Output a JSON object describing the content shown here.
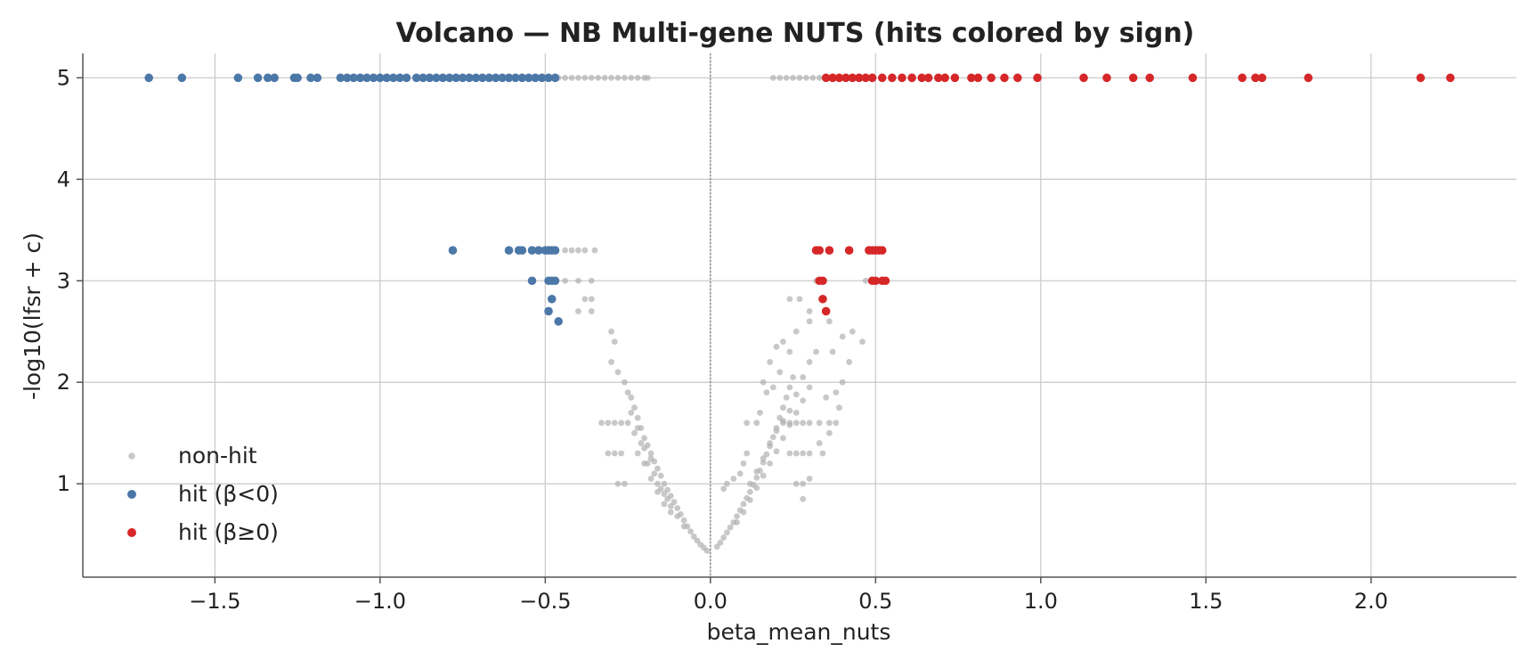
{
  "chart_data": {
    "type": "scatter",
    "title": "Volcano — NB Multi-gene NUTS (hits colored by sign)",
    "xlabel": "beta_mean_nuts",
    "ylabel": "-log10(lfsr + c)",
    "xlim": [
      -1.9,
      2.44
    ],
    "ylim": [
      0.08,
      5.24
    ],
    "xticks": [
      -1.5,
      -1.0,
      -0.5,
      0.0,
      0.5,
      1.0,
      1.5,
      2.0
    ],
    "xtick_labels": [
      "−1.5",
      "−1.0",
      "−0.5",
      "0.0",
      "0.5",
      "1.0",
      "1.5",
      "2.0"
    ],
    "yticks": [
      1,
      2,
      3,
      4,
      5
    ],
    "ytick_labels": [
      "1",
      "2",
      "3",
      "4",
      "5"
    ],
    "grid": true,
    "legend_position": "lower-left",
    "reference_line_x": 0.0,
    "colors": {
      "non_hit": "#b0b0b0",
      "neg_hit": "#4c78a8",
      "pos_hit": "#d62728"
    },
    "series": [
      {
        "name": "non-hit",
        "color": "#b0b0b0",
        "points": [
          [
            -0.46,
            5.0
          ],
          [
            -0.44,
            5.0
          ],
          [
            -0.42,
            5.0
          ],
          [
            -0.4,
            5.0
          ],
          [
            -0.38,
            5.0
          ],
          [
            -0.36,
            5.0
          ],
          [
            -0.34,
            5.0
          ],
          [
            -0.32,
            5.0
          ],
          [
            -0.3,
            5.0
          ],
          [
            -0.28,
            5.0
          ],
          [
            -0.26,
            5.0
          ],
          [
            -0.24,
            5.0
          ],
          [
            -0.22,
            5.0
          ],
          [
            -0.2,
            5.0
          ],
          [
            -0.19,
            5.0
          ],
          [
            0.19,
            5.0
          ],
          [
            0.21,
            5.0
          ],
          [
            0.23,
            5.0
          ],
          [
            0.25,
            5.0
          ],
          [
            0.27,
            5.0
          ],
          [
            0.29,
            5.0
          ],
          [
            0.31,
            5.0
          ],
          [
            0.33,
            5.0
          ],
          [
            -0.44,
            3.3
          ],
          [
            -0.42,
            3.3
          ],
          [
            -0.4,
            3.3
          ],
          [
            -0.38,
            3.3
          ],
          [
            -0.35,
            3.3
          ],
          [
            -0.36,
            3.0
          ],
          [
            -0.4,
            3.0
          ],
          [
            -0.38,
            2.82
          ],
          [
            -0.36,
            2.82
          ],
          [
            -0.4,
            2.7
          ],
          [
            -0.36,
            2.7
          ],
          [
            -0.44,
            3.0
          ],
          [
            0.24,
            2.82
          ],
          [
            0.27,
            2.82
          ],
          [
            0.3,
            2.7
          ],
          [
            0.32,
            3.0
          ],
          [
            0.3,
            2.6
          ],
          [
            0.26,
            2.5
          ],
          [
            0.36,
            2.6
          ],
          [
            0.4,
            2.45
          ],
          [
            0.43,
            2.5
          ],
          [
            0.46,
            2.4
          ],
          [
            0.48,
            3.3
          ],
          [
            0.47,
            3.0
          ],
          [
            0.42,
            2.2
          ],
          [
            -0.3,
            2.5
          ],
          [
            -0.29,
            2.4
          ],
          [
            -0.3,
            2.2
          ],
          [
            -0.28,
            2.1
          ],
          [
            -0.33,
            1.6
          ],
          [
            -0.31,
            1.6
          ],
          [
            -0.29,
            1.6
          ],
          [
            -0.27,
            1.6
          ],
          [
            -0.31,
            1.3
          ],
          [
            -0.29,
            1.3
          ],
          [
            -0.27,
            1.3
          ],
          [
            -0.28,
            1.0
          ],
          [
            -0.26,
            1.0
          ],
          [
            -0.25,
            1.9
          ],
          [
            -0.24,
            1.85
          ],
          [
            -0.23,
            1.75
          ],
          [
            -0.22,
            1.65
          ],
          [
            -0.21,
            1.55
          ],
          [
            -0.2,
            1.45
          ],
          [
            -0.19,
            1.38
          ],
          [
            -0.18,
            1.3
          ],
          [
            -0.17,
            1.22
          ],
          [
            -0.16,
            1.15
          ],
          [
            -0.15,
            1.08
          ],
          [
            -0.14,
            1.0
          ],
          [
            -0.13,
            0.94
          ],
          [
            -0.12,
            0.88
          ],
          [
            -0.11,
            0.82
          ],
          [
            -0.1,
            0.76
          ],
          [
            -0.09,
            0.7
          ],
          [
            -0.08,
            0.64
          ],
          [
            -0.07,
            0.58
          ],
          [
            -0.06,
            0.53
          ],
          [
            -0.05,
            0.48
          ],
          [
            -0.04,
            0.44
          ],
          [
            -0.03,
            0.4
          ],
          [
            -0.02,
            0.37
          ],
          [
            -0.01,
            0.34
          ],
          [
            -0.25,
            1.6
          ],
          [
            -0.23,
            1.5
          ],
          [
            -0.21,
            1.4
          ],
          [
            -0.19,
            1.2
          ],
          [
            -0.17,
            1.1
          ],
          [
            -0.15,
            0.95
          ],
          [
            -0.13,
            0.85
          ],
          [
            -0.22,
            1.3
          ],
          [
            -0.2,
            1.2
          ],
          [
            -0.18,
            1.05
          ],
          [
            -0.16,
            0.92
          ],
          [
            -0.14,
            0.8
          ],
          [
            -0.12,
            0.72
          ],
          [
            -0.26,
            2.0
          ],
          [
            -0.24,
            1.7
          ],
          [
            -0.22,
            1.55
          ],
          [
            -0.2,
            1.35
          ],
          [
            -0.18,
            1.25
          ],
          [
            -0.16,
            1.0
          ],
          [
            -0.14,
            0.9
          ],
          [
            -0.12,
            0.78
          ],
          [
            -0.1,
            0.68
          ],
          [
            -0.08,
            0.58
          ],
          [
            0.02,
            0.38
          ],
          [
            0.03,
            0.42
          ],
          [
            0.04,
            0.47
          ],
          [
            0.05,
            0.52
          ],
          [
            0.06,
            0.57
          ],
          [
            0.07,
            0.62
          ],
          [
            0.08,
            0.68
          ],
          [
            0.09,
            0.74
          ],
          [
            0.1,
            0.8
          ],
          [
            0.11,
            0.86
          ],
          [
            0.12,
            0.92
          ],
          [
            0.13,
            0.99
          ],
          [
            0.14,
            1.06
          ],
          [
            0.15,
            1.13
          ],
          [
            0.16,
            1.21
          ],
          [
            0.17,
            1.29
          ],
          [
            0.18,
            1.37
          ],
          [
            0.19,
            1.46
          ],
          [
            0.2,
            1.55
          ],
          [
            0.21,
            1.65
          ],
          [
            0.22,
            1.75
          ],
          [
            0.23,
            1.85
          ],
          [
            0.24,
            1.95
          ],
          [
            0.25,
            2.05
          ],
          [
            0.08,
            0.62
          ],
          [
            0.1,
            0.72
          ],
          [
            0.12,
            0.84
          ],
          [
            0.14,
            0.96
          ],
          [
            0.16,
            1.08
          ],
          [
            0.18,
            1.2
          ],
          [
            0.2,
            1.32
          ],
          [
            0.22,
            1.45
          ],
          [
            0.24,
            1.58
          ],
          [
            0.26,
            1.7
          ],
          [
            0.28,
            1.82
          ],
          [
            0.3,
            1.95
          ],
          [
            0.12,
            1.0
          ],
          [
            0.14,
            1.12
          ],
          [
            0.16,
            1.25
          ],
          [
            0.18,
            1.4
          ],
          [
            0.2,
            1.52
          ],
          [
            0.22,
            1.62
          ],
          [
            0.24,
            1.72
          ],
          [
            0.26,
            1.88
          ],
          [
            0.28,
            2.05
          ],
          [
            0.3,
            2.2
          ],
          [
            0.32,
            2.3
          ],
          [
            0.22,
            1.6
          ],
          [
            0.24,
            1.6
          ],
          [
            0.26,
            1.6
          ],
          [
            0.28,
            1.6
          ],
          [
            0.3,
            1.6
          ],
          [
            0.33,
            1.6
          ],
          [
            0.36,
            1.6
          ],
          [
            0.24,
            1.3
          ],
          [
            0.26,
            1.3
          ],
          [
            0.28,
            1.3
          ],
          [
            0.3,
            1.3
          ],
          [
            0.33,
            1.4
          ],
          [
            0.36,
            1.5
          ],
          [
            0.26,
            1.0
          ],
          [
            0.28,
            1.0
          ],
          [
            0.3,
            1.05
          ],
          [
            0.34,
            1.3
          ],
          [
            0.05,
            1.0
          ],
          [
            0.07,
            1.05
          ],
          [
            0.09,
            1.1
          ],
          [
            0.1,
            1.2
          ],
          [
            0.11,
            1.3
          ],
          [
            0.14,
            1.6
          ],
          [
            0.15,
            1.7
          ],
          [
            0.17,
            1.9
          ],
          [
            0.28,
            0.85
          ],
          [
            0.04,
            0.95
          ],
          [
            0.11,
            1.6
          ],
          [
            0.16,
            2.0
          ],
          [
            0.18,
            2.2
          ],
          [
            0.2,
            2.35
          ],
          [
            0.22,
            2.4
          ],
          [
            0.24,
            2.3
          ],
          [
            0.21,
            2.1
          ],
          [
            0.19,
            1.95
          ],
          [
            0.38,
            1.9
          ],
          [
            0.4,
            2.0
          ],
          [
            0.38,
            1.6
          ],
          [
            0.35,
            1.85
          ],
          [
            0.37,
            2.3
          ],
          [
            0.39,
            1.75
          ]
        ]
      },
      {
        "name": "hit (β<0)",
        "color": "#4c78a8",
        "points": [
          [
            -1.7,
            5.0
          ],
          [
            -1.6,
            5.0
          ],
          [
            -1.43,
            5.0
          ],
          [
            -1.37,
            5.0
          ],
          [
            -1.34,
            5.0
          ],
          [
            -1.32,
            5.0
          ],
          [
            -1.26,
            5.0
          ],
          [
            -1.25,
            5.0
          ],
          [
            -1.21,
            5.0
          ],
          [
            -1.19,
            5.0
          ],
          [
            -1.12,
            5.0
          ],
          [
            -1.1,
            5.0
          ],
          [
            -1.08,
            5.0
          ],
          [
            -1.06,
            5.0
          ],
          [
            -1.04,
            5.0
          ],
          [
            -1.02,
            5.0
          ],
          [
            -1.0,
            5.0
          ],
          [
            -0.98,
            5.0
          ],
          [
            -0.96,
            5.0
          ],
          [
            -0.94,
            5.0
          ],
          [
            -0.92,
            5.0
          ],
          [
            -0.89,
            5.0
          ],
          [
            -0.87,
            5.0
          ],
          [
            -0.85,
            5.0
          ],
          [
            -0.83,
            5.0
          ],
          [
            -0.81,
            5.0
          ],
          [
            -0.79,
            5.0
          ],
          [
            -0.77,
            5.0
          ],
          [
            -0.75,
            5.0
          ],
          [
            -0.73,
            5.0
          ],
          [
            -0.71,
            5.0
          ],
          [
            -0.69,
            5.0
          ],
          [
            -0.67,
            5.0
          ],
          [
            -0.65,
            5.0
          ],
          [
            -0.63,
            5.0
          ],
          [
            -0.61,
            5.0
          ],
          [
            -0.59,
            5.0
          ],
          [
            -0.57,
            5.0
          ],
          [
            -0.55,
            5.0
          ],
          [
            -0.53,
            5.0
          ],
          [
            -0.51,
            5.0
          ],
          [
            -0.49,
            5.0
          ],
          [
            -0.47,
            5.0
          ],
          [
            -0.78,
            3.3
          ],
          [
            -0.61,
            3.3
          ],
          [
            -0.58,
            3.3
          ],
          [
            -0.57,
            3.3
          ],
          [
            -0.54,
            3.3
          ],
          [
            -0.52,
            3.3
          ],
          [
            -0.5,
            3.3
          ],
          [
            -0.49,
            3.3
          ],
          [
            -0.48,
            3.3
          ],
          [
            -0.47,
            3.3
          ],
          [
            -0.54,
            3.0
          ],
          [
            -0.49,
            3.0
          ],
          [
            -0.48,
            3.0
          ],
          [
            -0.47,
            3.0
          ],
          [
            -0.48,
            2.82
          ],
          [
            -0.49,
            2.7
          ],
          [
            -0.46,
            2.6
          ]
        ]
      },
      {
        "name": "hit (β≥0)",
        "color": "#d62728",
        "points": [
          [
            0.35,
            5.0
          ],
          [
            0.37,
            5.0
          ],
          [
            0.39,
            5.0
          ],
          [
            0.41,
            5.0
          ],
          [
            0.43,
            5.0
          ],
          [
            0.45,
            5.0
          ],
          [
            0.47,
            5.0
          ],
          [
            0.49,
            5.0
          ],
          [
            0.52,
            5.0
          ],
          [
            0.55,
            5.0
          ],
          [
            0.58,
            5.0
          ],
          [
            0.61,
            5.0
          ],
          [
            0.64,
            5.0
          ],
          [
            0.66,
            5.0
          ],
          [
            0.69,
            5.0
          ],
          [
            0.71,
            5.0
          ],
          [
            0.74,
            5.0
          ],
          [
            0.79,
            5.0
          ],
          [
            0.81,
            5.0
          ],
          [
            0.85,
            5.0
          ],
          [
            0.89,
            5.0
          ],
          [
            0.93,
            5.0
          ],
          [
            0.99,
            5.0
          ],
          [
            1.13,
            5.0
          ],
          [
            1.2,
            5.0
          ],
          [
            1.28,
            5.0
          ],
          [
            1.33,
            5.0
          ],
          [
            1.46,
            5.0
          ],
          [
            1.61,
            5.0
          ],
          [
            1.65,
            5.0
          ],
          [
            1.67,
            5.0
          ],
          [
            1.81,
            5.0
          ],
          [
            2.15,
            5.0
          ],
          [
            2.24,
            5.0
          ],
          [
            0.32,
            3.3
          ],
          [
            0.33,
            3.3
          ],
          [
            0.36,
            3.3
          ],
          [
            0.42,
            3.3
          ],
          [
            0.48,
            3.3
          ],
          [
            0.49,
            3.3
          ],
          [
            0.5,
            3.3
          ],
          [
            0.51,
            3.3
          ],
          [
            0.52,
            3.3
          ],
          [
            0.33,
            3.0
          ],
          [
            0.34,
            3.0
          ],
          [
            0.49,
            3.0
          ],
          [
            0.5,
            3.0
          ],
          [
            0.52,
            3.0
          ],
          [
            0.53,
            3.0
          ],
          [
            0.34,
            2.82
          ],
          [
            0.35,
            2.7
          ]
        ]
      }
    ]
  }
}
